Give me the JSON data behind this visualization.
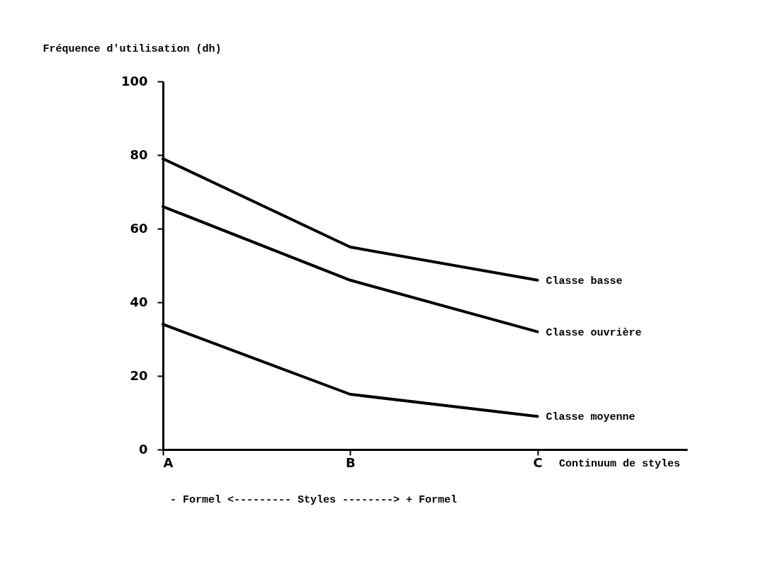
{
  "chart_data": {
    "type": "line",
    "ylabel": "Fréquence d'utilisation (dh)",
    "xlabel": "Continuum de styles",
    "categories": [
      "A",
      "B",
      "C"
    ],
    "series": [
      {
        "name": "Classe basse",
        "color": "#000000",
        "values": [
          79,
          55,
          46
        ]
      },
      {
        "name": "Classe ouvrière",
        "color": "#000000",
        "values": [
          66,
          46,
          32
        ]
      },
      {
        "name": "Classe moyenne",
        "color": "#000000",
        "values": [
          34,
          15,
          9
        ]
      }
    ],
    "ylim": [
      0,
      100
    ],
    "yticks": [
      0,
      20,
      40,
      60,
      80,
      100
    ],
    "annotations": [
      "- Formel <--------- Styles --------> + Formel"
    ],
    "grid": false,
    "marker": "none",
    "line_style": "solid"
  }
}
